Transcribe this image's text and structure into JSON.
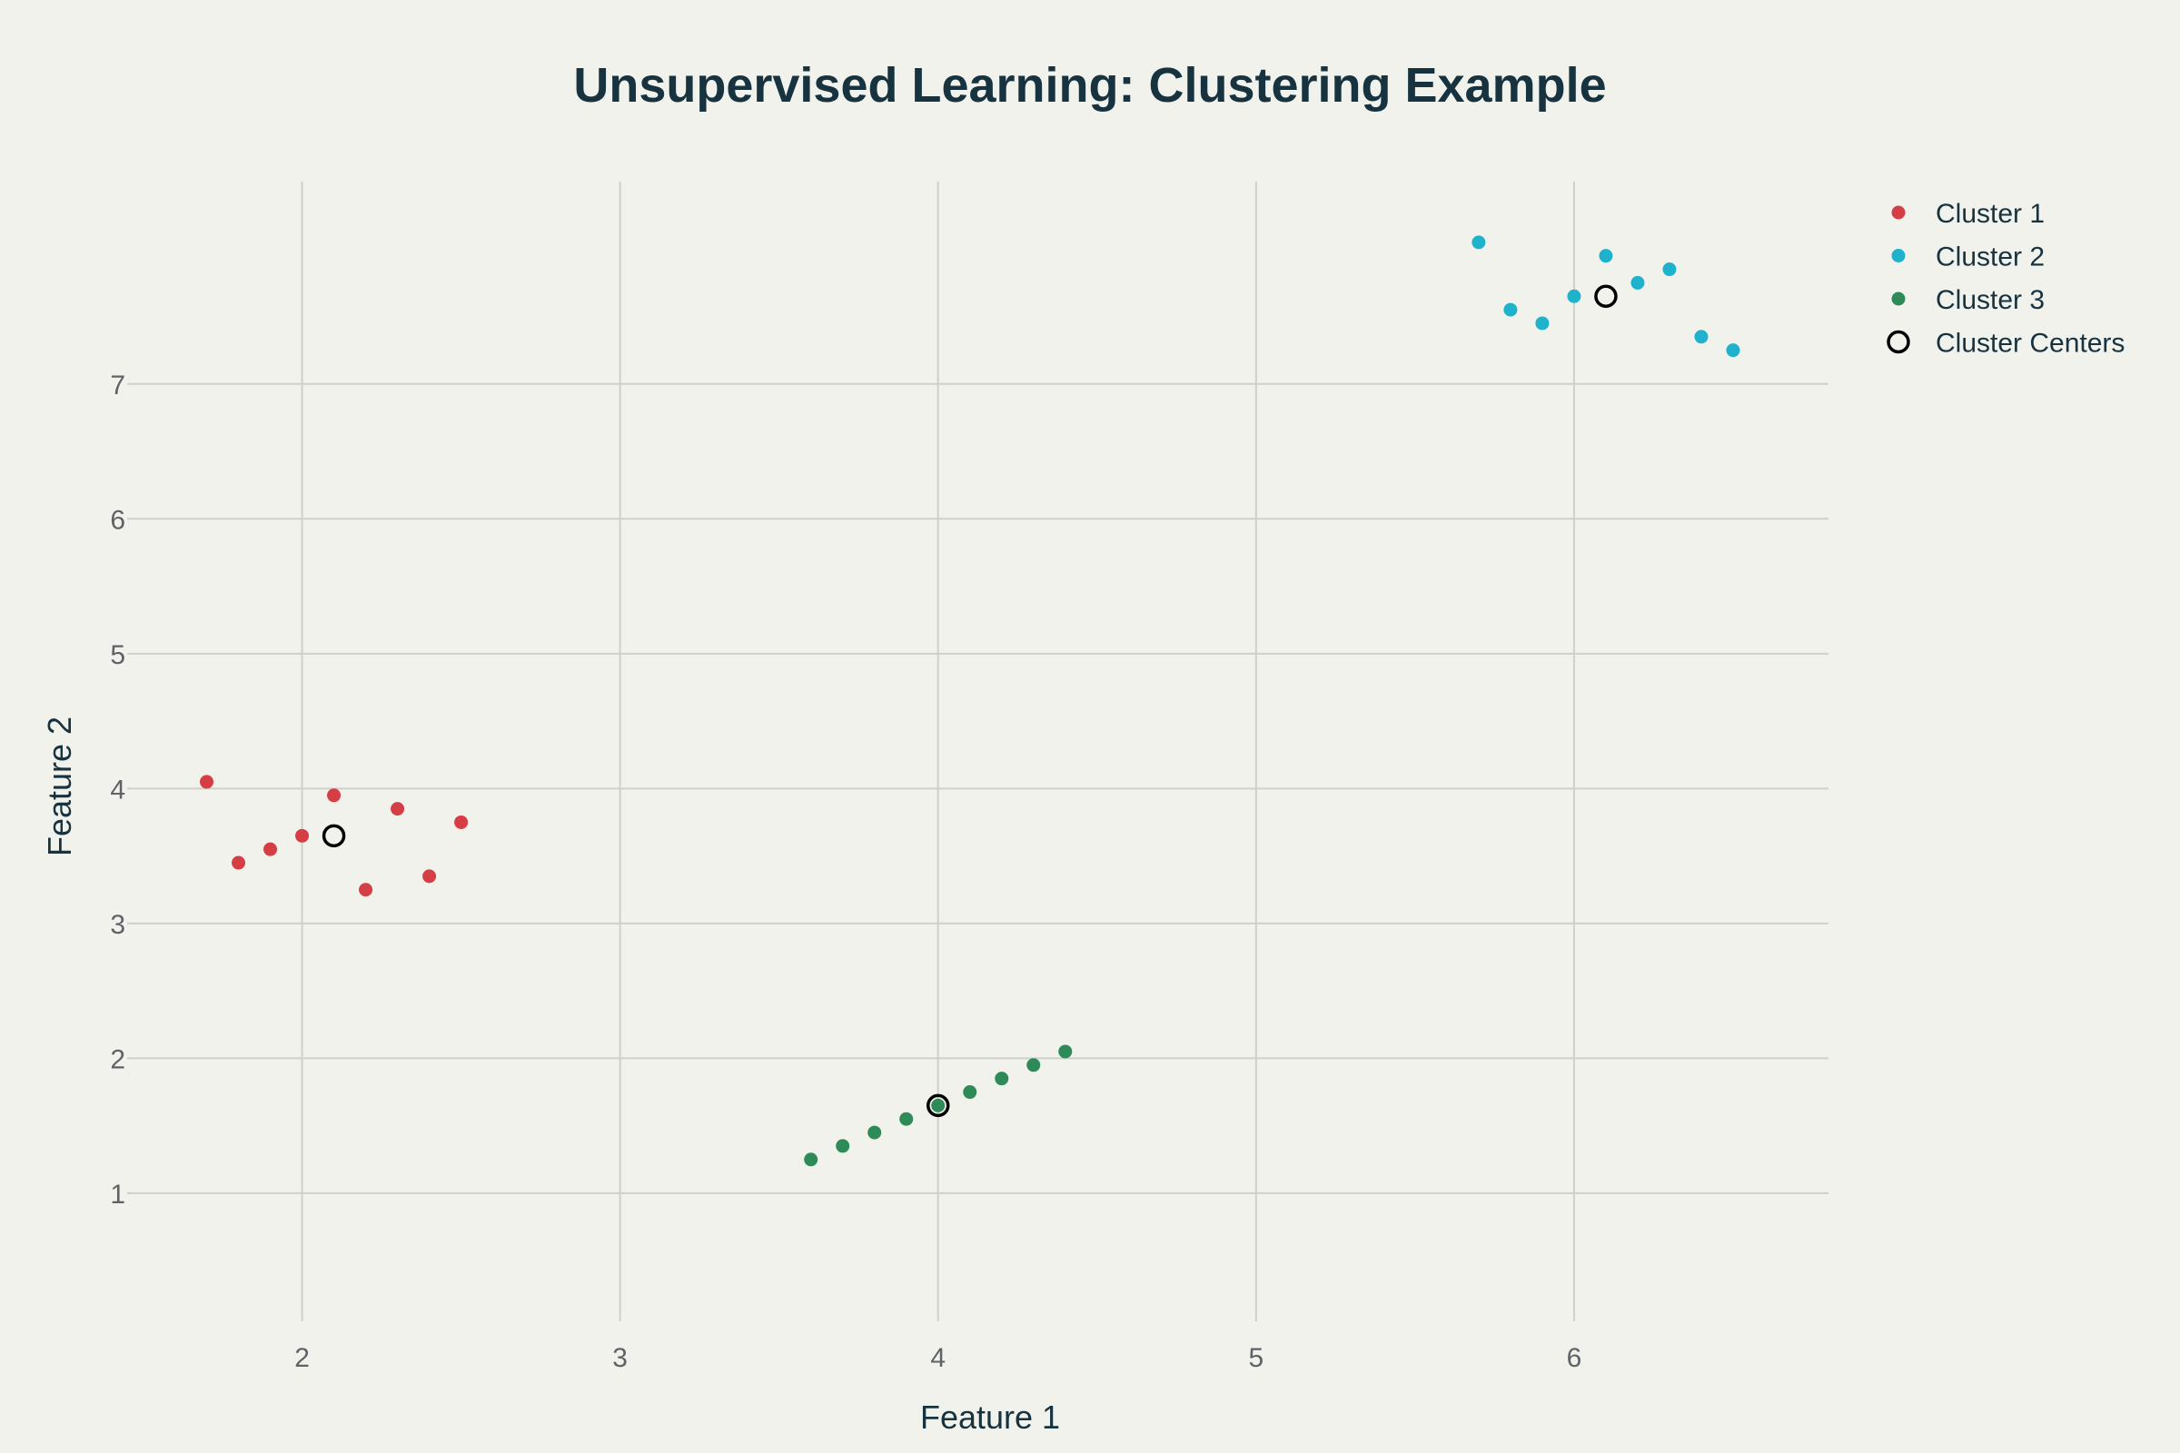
{
  "chart_data": {
    "type": "scatter",
    "title": "Unsupervised Learning: Clustering Example",
    "xlabel": "Feature 1",
    "ylabel": "Feature 2",
    "xlim": [
      1.45,
      6.8
    ],
    "ylim": [
      0.05,
      8.5
    ],
    "xticks": [
      2,
      3,
      4,
      5,
      6
    ],
    "yticks": [
      1,
      2,
      3,
      4,
      5,
      6,
      7
    ],
    "grid": true,
    "legend_position": "top-right",
    "series": [
      {
        "name": "Cluster 1",
        "color": "#d63e45",
        "marker": "filled-circle",
        "points": [
          {
            "x": 1.7,
            "y": 4.05
          },
          {
            "x": 1.8,
            "y": 3.45
          },
          {
            "x": 1.9,
            "y": 3.55
          },
          {
            "x": 2.0,
            "y": 3.65
          },
          {
            "x": 2.1,
            "y": 3.95
          },
          {
            "x": 2.2,
            "y": 3.25
          },
          {
            "x": 2.3,
            "y": 3.85
          },
          {
            "x": 2.4,
            "y": 3.35
          },
          {
            "x": 2.5,
            "y": 3.75
          }
        ]
      },
      {
        "name": "Cluster 2",
        "color": "#1fb2cc",
        "marker": "filled-circle",
        "points": [
          {
            "x": 5.7,
            "y": 8.05
          },
          {
            "x": 5.8,
            "y": 7.55
          },
          {
            "x": 5.9,
            "y": 7.45
          },
          {
            "x": 6.0,
            "y": 7.65
          },
          {
            "x": 6.1,
            "y": 7.95
          },
          {
            "x": 6.2,
            "y": 7.75
          },
          {
            "x": 6.3,
            "y": 7.85
          },
          {
            "x": 6.4,
            "y": 7.35
          },
          {
            "x": 6.5,
            "y": 7.25
          }
        ]
      },
      {
        "name": "Cluster 3",
        "color": "#2e8b57",
        "marker": "filled-circle",
        "points": [
          {
            "x": 3.6,
            "y": 1.25
          },
          {
            "x": 3.7,
            "y": 1.35
          },
          {
            "x": 3.8,
            "y": 1.45
          },
          {
            "x": 3.9,
            "y": 1.55
          },
          {
            "x": 4.0,
            "y": 1.65
          },
          {
            "x": 4.1,
            "y": 1.75
          },
          {
            "x": 4.2,
            "y": 1.85
          },
          {
            "x": 4.3,
            "y": 1.95
          },
          {
            "x": 4.4,
            "y": 2.05
          }
        ]
      },
      {
        "name": "Cluster Centers",
        "color": "#000000",
        "marker": "open-circle",
        "points": [
          {
            "x": 2.1,
            "y": 3.65
          },
          {
            "x": 6.1,
            "y": 7.65
          },
          {
            "x": 4.0,
            "y": 1.65
          }
        ]
      }
    ]
  }
}
